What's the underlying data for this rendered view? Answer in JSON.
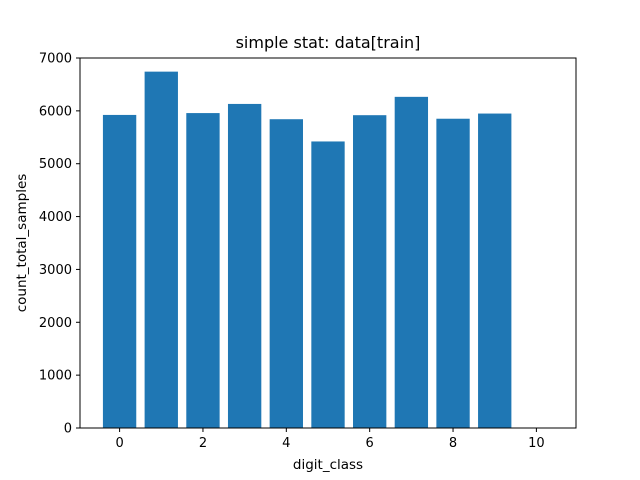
{
  "chart_data": {
    "type": "bar",
    "title": "simple stat: data[train]",
    "xlabel": "digit_class",
    "ylabel": "count_total_samples",
    "categories": [
      0,
      1,
      2,
      3,
      4,
      5,
      6,
      7,
      8,
      9
    ],
    "values": [
      5923,
      6742,
      5958,
      6131,
      5842,
      5421,
      5918,
      6265,
      5851,
      5949
    ],
    "xlim": [
      -0.95,
      10.95
    ],
    "ylim": [
      0,
      7000
    ],
    "xticks": [
      0,
      2,
      4,
      6,
      8,
      10
    ],
    "yticks": [
      0,
      1000,
      2000,
      3000,
      4000,
      5000,
      6000,
      7000
    ],
    "bar_color": "#1f77b4",
    "grid": false,
    "legend": "none"
  }
}
